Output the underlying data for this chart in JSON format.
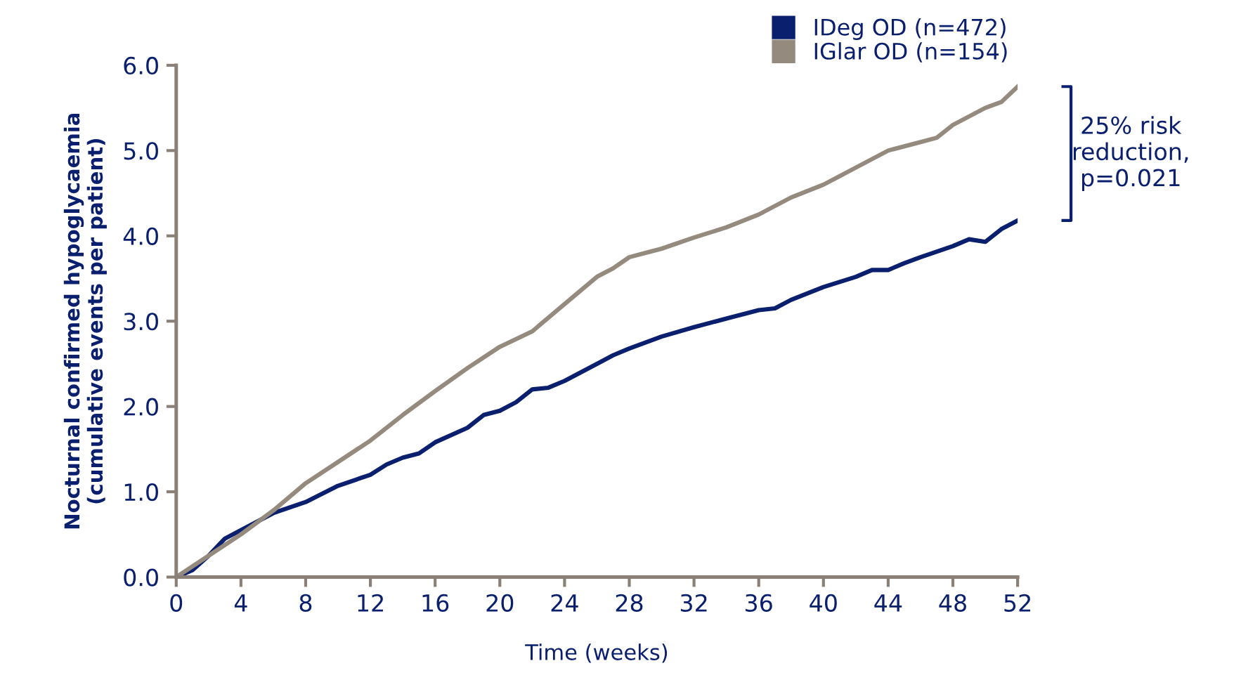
{
  "chart_data": {
    "type": "line",
    "xlabel": "Time (weeks)",
    "ylabel": "Nocturnal confirmed hypoglycaemia\n(cumulative events per patient)",
    "xlim": [
      0,
      52
    ],
    "xticks": [
      0,
      4,
      8,
      12,
      16,
      20,
      24,
      28,
      32,
      36,
      40,
      44,
      48,
      52
    ],
    "ylim": [
      0,
      6
    ],
    "yticks": [
      {
        "value": 0,
        "label": "0.0"
      },
      {
        "value": 1,
        "label": "1.0"
      },
      {
        "value": 2,
        "label": "2.0"
      },
      {
        "value": 3,
        "label": "3.0"
      },
      {
        "value": 4,
        "label": "4.0"
      },
      {
        "value": 5,
        "label": "5.0"
      },
      {
        "value": 6,
        "label": "6.0"
      }
    ],
    "grid": false,
    "legend": "top right",
    "marker": "none",
    "line_style": "solid",
    "annotations": [
      "25% risk\nreduction,\np=0.021"
    ],
    "series": [
      {
        "name": "IDeg OD (n=472)",
        "color": "#0a1f6e",
        "x": [
          0,
          1,
          2,
          3,
          4,
          6,
          8,
          10,
          12,
          13,
          14,
          15,
          16,
          18,
          19,
          20,
          21,
          22,
          23,
          24,
          26,
          27,
          28,
          30,
          32,
          34,
          36,
          37,
          38,
          40,
          42,
          43,
          44,
          45,
          46,
          48,
          49,
          50,
          51,
          52
        ],
        "values": [
          0,
          0.08,
          0.25,
          0.45,
          0.55,
          0.75,
          0.88,
          1.07,
          1.2,
          1.32,
          1.4,
          1.45,
          1.58,
          1.75,
          1.9,
          1.95,
          2.05,
          2.2,
          2.22,
          2.3,
          2.5,
          2.6,
          2.68,
          2.82,
          2.93,
          3.03,
          3.13,
          3.15,
          3.25,
          3.4,
          3.52,
          3.6,
          3.6,
          3.68,
          3.75,
          3.88,
          3.96,
          3.93,
          4.08,
          4.18
        ]
      },
      {
        "name": "IGlar OD (n=154)",
        "color": "#948a7e",
        "x": [
          0,
          2,
          4,
          6,
          8,
          10,
          12,
          14,
          16,
          18,
          20,
          22,
          24,
          26,
          27,
          28,
          29,
          30,
          32,
          34,
          36,
          38,
          40,
          42,
          44,
          46,
          47,
          48,
          50,
          51,
          52
        ],
        "values": [
          0,
          0.25,
          0.5,
          0.78,
          1.1,
          1.35,
          1.6,
          1.9,
          2.18,
          2.45,
          2.7,
          2.88,
          3.2,
          3.52,
          3.62,
          3.75,
          3.8,
          3.85,
          3.98,
          4.1,
          4.25,
          4.45,
          4.6,
          4.8,
          5.0,
          5.1,
          5.15,
          5.3,
          5.5,
          5.57,
          5.75
        ]
      }
    ]
  }
}
